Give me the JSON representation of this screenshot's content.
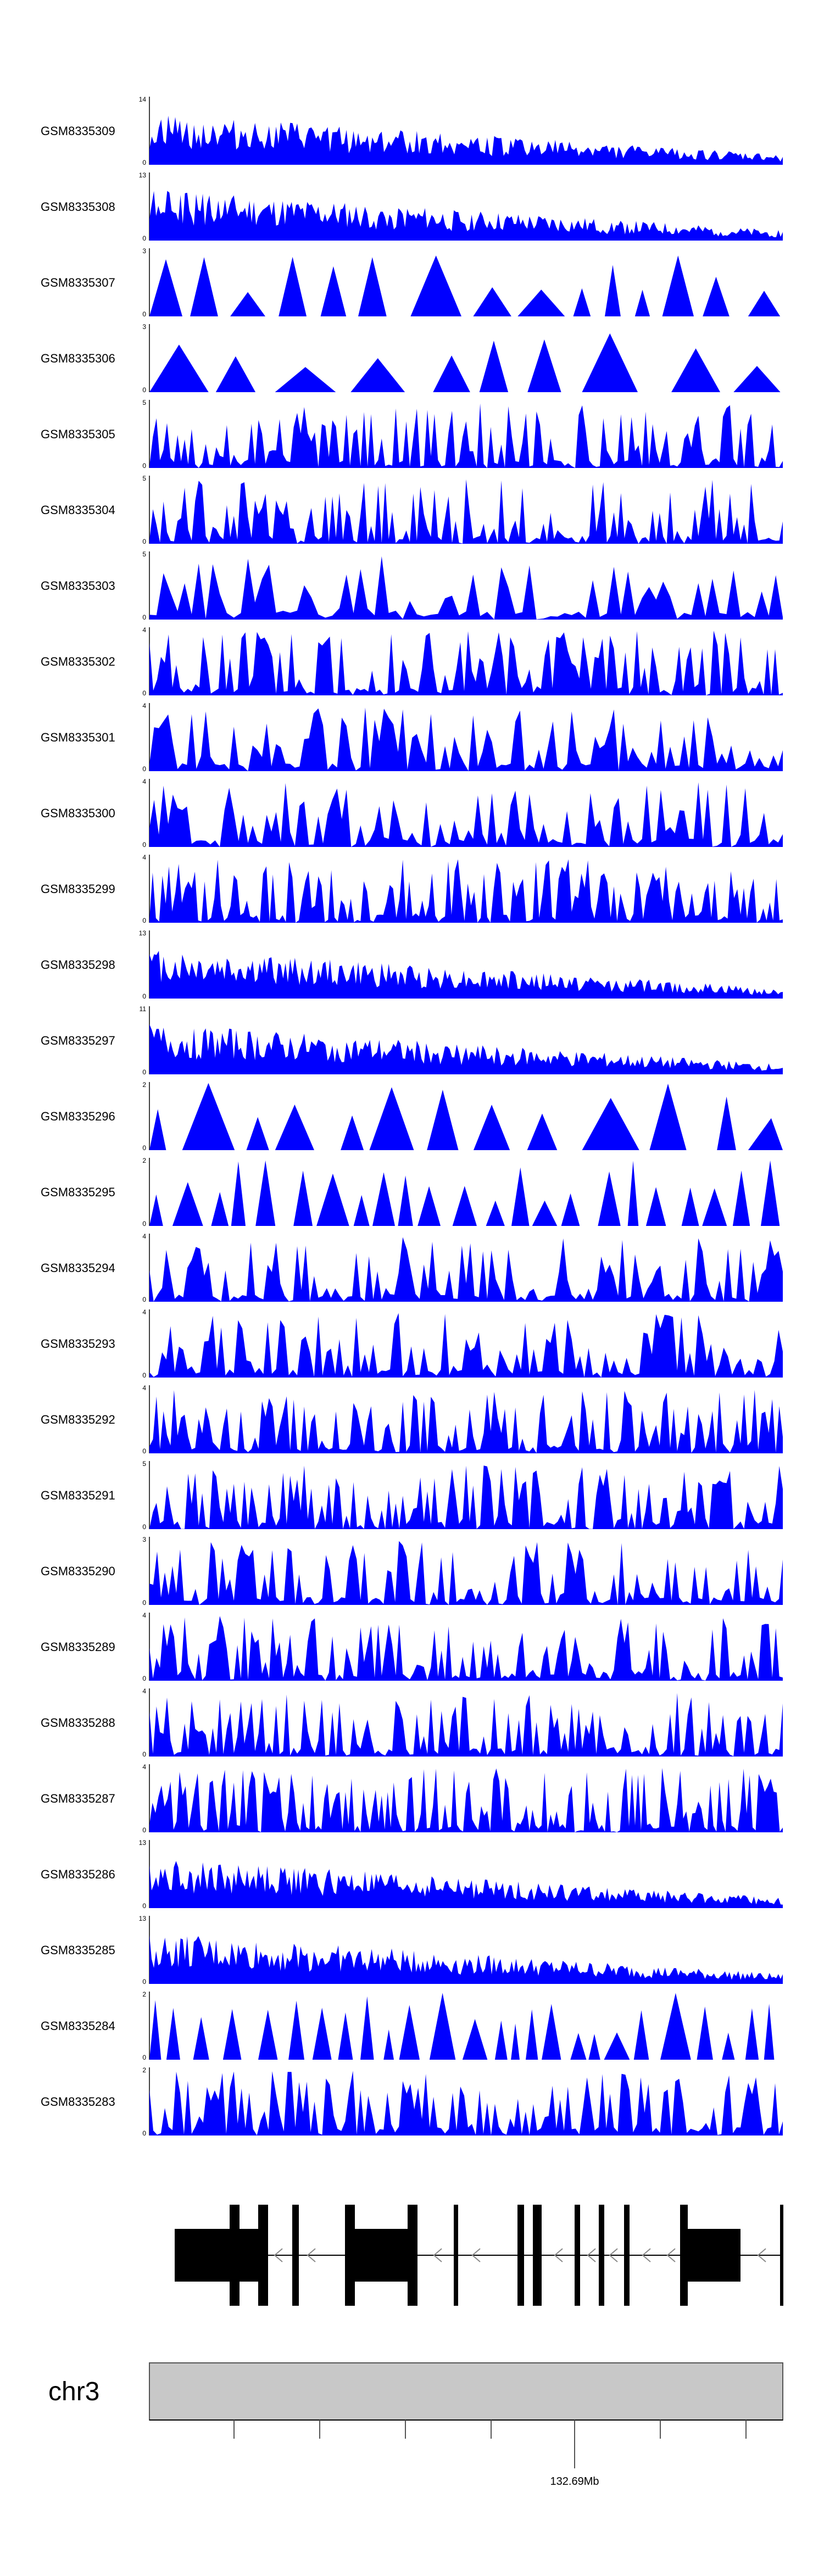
{
  "colors": {
    "signal": "#0000ff",
    "gene": "#000000",
    "ideogram": "#c8c8c8",
    "axis": "#000000"
  },
  "chart_data": {
    "type": "area",
    "chromosome": "chr3",
    "position_label": "132.69Mb",
    "gene_model_shown": true,
    "samples": [
      {
        "name": "GSM8335309",
        "ymax": "14",
        "ymin": "0",
        "seed": 309,
        "pattern": "decreasing",
        "density": 90
      },
      {
        "name": "GSM8335308",
        "ymax": "13",
        "ymin": "0",
        "seed": 308,
        "pattern": "decreasing",
        "density": 95
      },
      {
        "name": "GSM8335307",
        "ymax": "3",
        "ymin": "0",
        "seed": 307,
        "pattern": "sparse",
        "density": 14
      },
      {
        "name": "GSM8335306",
        "ymax": "3",
        "ymin": "0",
        "seed": 306,
        "pattern": "sparse",
        "density": 10
      },
      {
        "name": "GSM8335305",
        "ymax": "5",
        "ymin": "0",
        "seed": 305,
        "pattern": "uniform",
        "density": 60
      },
      {
        "name": "GSM8335304",
        "ymax": "5",
        "ymin": "0",
        "seed": 304,
        "pattern": "uniform",
        "density": 60
      },
      {
        "name": "GSM8335303",
        "ymax": "5",
        "ymin": "0",
        "seed": 303,
        "pattern": "uniform",
        "density": 30
      },
      {
        "name": "GSM8335302",
        "ymax": "4",
        "ymin": "0",
        "seed": 302,
        "pattern": "uniform",
        "density": 55
      },
      {
        "name": "GSM8335301",
        "ymax": "4",
        "ymin": "0",
        "seed": 301,
        "pattern": "uniform",
        "density": 45
      },
      {
        "name": "GSM8335300",
        "ymax": "4",
        "ymin": "0",
        "seed": 300,
        "pattern": "uniform",
        "density": 45
      },
      {
        "name": "GSM8335299",
        "ymax": "4",
        "ymin": "0",
        "seed": 299,
        "pattern": "uniform",
        "density": 65
      },
      {
        "name": "GSM8335298",
        "ymax": "13",
        "ymin": "0",
        "seed": 298,
        "pattern": "decreasing",
        "density": 90
      },
      {
        "name": "GSM8335297",
        "ymax": "11",
        "ymin": "0",
        "seed": 297,
        "pattern": "decreasing",
        "density": 90
      },
      {
        "name": "GSM8335296",
        "ymax": "2",
        "ymin": "0",
        "seed": 296,
        "pattern": "sparse",
        "density": 14
      },
      {
        "name": "GSM8335295",
        "ymax": "2",
        "ymin": "0",
        "seed": 295,
        "pattern": "sparse",
        "density": 24
      },
      {
        "name": "GSM8335294",
        "ymax": "4",
        "ymin": "0",
        "seed": 294,
        "pattern": "uniform",
        "density": 50
      },
      {
        "name": "GSM8335293",
        "ymax": "4",
        "ymin": "0",
        "seed": 293,
        "pattern": "uniform",
        "density": 50
      },
      {
        "name": "GSM8335292",
        "ymax": "4",
        "ymin": "0",
        "seed": 292,
        "pattern": "uniform",
        "density": 60
      },
      {
        "name": "GSM8335291",
        "ymax": "5",
        "ymin": "0",
        "seed": 291,
        "pattern": "uniform",
        "density": 60
      },
      {
        "name": "GSM8335290",
        "ymax": "3",
        "ymin": "0",
        "seed": 290,
        "pattern": "uniform",
        "density": 55
      },
      {
        "name": "GSM8335289",
        "ymax": "4",
        "ymin": "0",
        "seed": 289,
        "pattern": "uniform",
        "density": 60
      },
      {
        "name": "GSM8335288",
        "ymax": "4",
        "ymin": "0",
        "seed": 288,
        "pattern": "uniform",
        "density": 60
      },
      {
        "name": "GSM8335287",
        "ymax": "4",
        "ymin": "0",
        "seed": 287,
        "pattern": "uniform",
        "density": 70
      },
      {
        "name": "GSM8335286",
        "ymax": "13",
        "ymin": "0",
        "seed": 286,
        "pattern": "decreasing",
        "density": 95
      },
      {
        "name": "GSM8335285",
        "ymax": "13",
        "ymin": "0",
        "seed": 285,
        "pattern": "decreasing",
        "density": 95
      },
      {
        "name": "GSM8335284",
        "ymax": "2",
        "ymin": "0",
        "seed": 284,
        "pattern": "sparse",
        "density": 26
      },
      {
        "name": "GSM8335283",
        "ymax": "2",
        "ymin": "0",
        "seed": 283,
        "pattern": "uniform",
        "density": 55
      }
    ]
  }
}
